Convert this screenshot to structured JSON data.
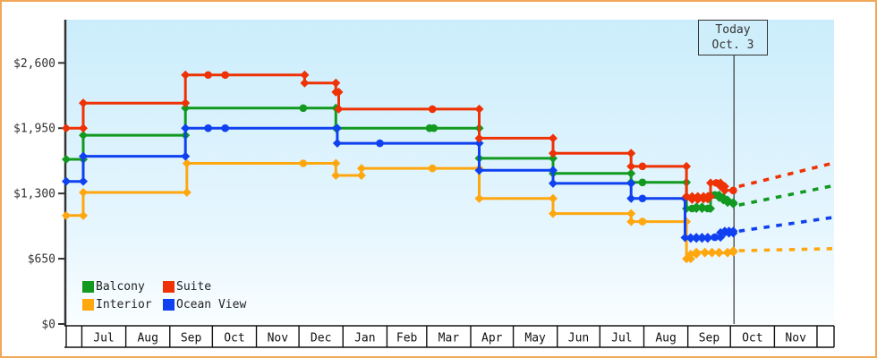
{
  "chart_data": {
    "type": "line",
    "title": "",
    "subtitle": "",
    "grid": false,
    "legend_position": "bottom-left",
    "y_axis": {
      "range": [
        0,
        2900
      ],
      "ticks": [
        {
          "value": 0,
          "label": "$0"
        },
        {
          "value": 650,
          "label": "$650"
        },
        {
          "value": 1300,
          "label": "$1,300"
        },
        {
          "value": 1950,
          "label": "$1,950"
        },
        {
          "value": 2600,
          "label": "$2,600"
        }
      ]
    },
    "x_axis": {
      "unit": "months",
      "cells": [
        {
          "label": "",
          "days": 11
        },
        {
          "label": "Jul",
          "days": 31
        },
        {
          "label": "Aug",
          "days": 31
        },
        {
          "label": "Sep",
          "days": 30
        },
        {
          "label": "Oct",
          "days": 31
        },
        {
          "label": "Nov",
          "days": 30
        },
        {
          "label": "Dec",
          "days": 31
        },
        {
          "label": "Jan",
          "days": 31
        },
        {
          "label": "Feb",
          "days": 28
        },
        {
          "label": "Mar",
          "days": 31
        },
        {
          "label": "Apr",
          "days": 30
        },
        {
          "label": "May",
          "days": 31
        },
        {
          "label": "Jun",
          "days": 30
        },
        {
          "label": "Jul",
          "days": 31
        },
        {
          "label": "Aug",
          "days": 31
        },
        {
          "label": "Sep",
          "days": 30
        },
        {
          "label": "Oct",
          "days": 31
        },
        {
          "label": "Nov",
          "days": 30
        },
        {
          "label": "",
          "days": 12
        }
      ]
    },
    "today_marker": {
      "line1": "Today",
      "line2": "Oct. 3",
      "day": 470.5
    },
    "series": [
      {
        "name": "Balcony",
        "color": "#12991f",
        "points": [
          [
            0,
            1640
          ],
          [
            12,
            1880
          ],
          [
            84,
            2150
          ],
          [
            167,
            2150
          ],
          [
            190,
            1950
          ],
          [
            256,
            1950
          ],
          [
            259,
            1950
          ],
          [
            291,
            1650
          ],
          [
            343,
            1500
          ],
          [
            398,
            1410
          ],
          [
            406,
            1410
          ],
          [
            437,
            1150
          ],
          [
            441,
            1150
          ],
          [
            444,
            1165
          ],
          [
            448,
            1150
          ],
          [
            452,
            1150
          ],
          [
            454,
            1285
          ],
          [
            457,
            1285
          ],
          [
            460,
            1260
          ],
          [
            463,
            1235
          ],
          [
            466,
            1210
          ],
          [
            470,
            1195
          ]
        ],
        "forecast": {
          "from_day": 474,
          "from_value": 1185,
          "to_day": 541,
          "to_value": 1375
        }
      },
      {
        "name": "Suite",
        "color": "#ee3205",
        "points": [
          [
            0,
            1950
          ],
          [
            12,
            2200
          ],
          [
            84,
            2480
          ],
          [
            100,
            2480
          ],
          [
            112,
            2480
          ],
          [
            168,
            2400
          ],
          [
            190,
            2310
          ],
          [
            192,
            2140
          ],
          [
            258,
            2140
          ],
          [
            291,
            1850
          ],
          [
            343,
            1700
          ],
          [
            398,
            1570
          ],
          [
            406,
            1570
          ],
          [
            437,
            1270
          ],
          [
            441,
            1240
          ],
          [
            445,
            1270
          ],
          [
            449,
            1245
          ],
          [
            452,
            1270
          ],
          [
            454,
            1405
          ],
          [
            458,
            1405
          ],
          [
            461,
            1370
          ],
          [
            464,
            1330
          ],
          [
            470,
            1330
          ]
        ],
        "forecast": {
          "from_day": 474,
          "from_value": 1370,
          "to_day": 541,
          "to_value": 1600
        }
      },
      {
        "name": "Interior",
        "color": "#ffa70f",
        "points": [
          [
            0,
            1080
          ],
          [
            12,
            1310
          ],
          [
            85,
            1600
          ],
          [
            167,
            1600
          ],
          [
            190,
            1480
          ],
          [
            208,
            1550
          ],
          [
            258,
            1550
          ],
          [
            291,
            1250
          ],
          [
            343,
            1100
          ],
          [
            398,
            1020
          ],
          [
            406,
            1020
          ],
          [
            437,
            650
          ],
          [
            440,
            695
          ],
          [
            444,
            715
          ],
          [
            450,
            708
          ],
          [
            455,
            715
          ],
          [
            460,
            708
          ],
          [
            466,
            715
          ],
          [
            470,
            730
          ]
        ],
        "forecast": {
          "from_day": 474,
          "from_value": 730,
          "to_day": 541,
          "to_value": 750
        }
      },
      {
        "name": "Ocean View",
        "color": "#0f41f0",
        "points": [
          [
            0,
            1420
          ],
          [
            12,
            1670
          ],
          [
            84,
            1950
          ],
          [
            100,
            1950
          ],
          [
            112,
            1950
          ],
          [
            191,
            1800
          ],
          [
            221,
            1800
          ],
          [
            291,
            1530
          ],
          [
            343,
            1400
          ],
          [
            398,
            1250
          ],
          [
            406,
            1250
          ],
          [
            436,
            860
          ],
          [
            440,
            852
          ],
          [
            444,
            864
          ],
          [
            448,
            852
          ],
          [
            452,
            864
          ],
          [
            457,
            864
          ],
          [
            461,
            910
          ],
          [
            464,
            925
          ],
          [
            467,
            905
          ],
          [
            470,
            925
          ]
        ],
        "forecast": {
          "from_day": 474,
          "from_value": 925,
          "to_day": 541,
          "to_value": 1060
        }
      }
    ],
    "colors": {
      "frame_border": "#f0a757",
      "plot_bg_top": "#cbedfb",
      "plot_bg_bottom": "#f9feff",
      "axis": "#333333",
      "month_text": "#111111",
      "tick_text": "#333333"
    }
  },
  "legend": {
    "items": [
      {
        "series_index": 0,
        "label": "Balcony"
      },
      {
        "series_index": 1,
        "label": "Suite"
      },
      {
        "series_index": 2,
        "label": "Interior"
      },
      {
        "series_index": 3,
        "label": "Ocean View"
      }
    ]
  }
}
